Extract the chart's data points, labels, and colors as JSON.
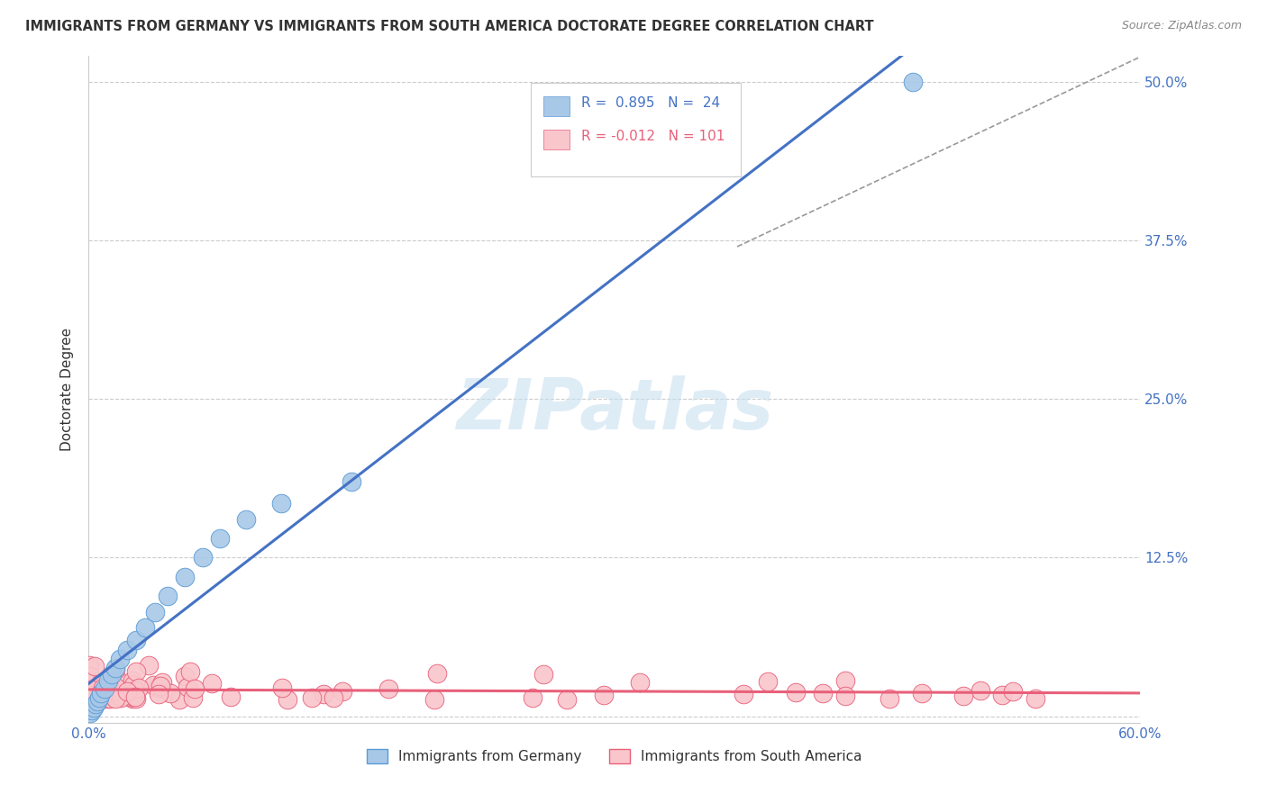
{
  "title": "IMMIGRANTS FROM GERMANY VS IMMIGRANTS FROM SOUTH AMERICA DOCTORATE DEGREE CORRELATION CHART",
  "source": "Source: ZipAtlas.com",
  "ylabel_label": "Doctorate Degree",
  "xlim": [
    0.0,
    0.6
  ],
  "ylim": [
    -0.005,
    0.52
  ],
  "germany_color": "#a8c8e8",
  "germany_edge": "#5b9bd5",
  "south_america_color": "#f9c6cc",
  "south_america_edge": "#e8607a",
  "blue_line_color": "#4472c4",
  "pink_line_color": "#e8607a",
  "dashed_line_color": "#aaaaaa",
  "watermark": "ZIPatlas",
  "ytick_positions": [
    0.0,
    0.125,
    0.25,
    0.375,
    0.5
  ],
  "ytick_labels": [
    "",
    "12.5%",
    "25.0%",
    "37.5%",
    "50.0%"
  ],
  "xtick_labels_show": [
    "0.0%",
    "60.0%"
  ]
}
